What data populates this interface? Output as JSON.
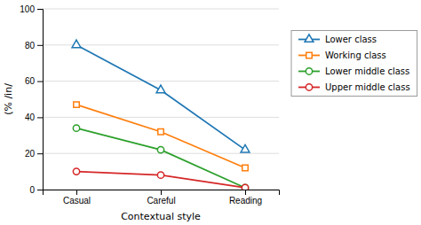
{
  "chart_data": {
    "type": "line",
    "categories": [
      "Casual",
      "Careful",
      "Reading"
    ],
    "series": [
      {
        "name": "Lower class",
        "values": [
          80,
          55,
          22
        ],
        "marker": "triangle"
      },
      {
        "name": "Working class",
        "values": [
          47,
          32,
          12
        ],
        "marker": "square"
      },
      {
        "name": "Lower middle class",
        "values": [
          34,
          22,
          1
        ],
        "marker": "circle"
      },
      {
        "name": "Upper middle class",
        "values": [
          10,
          8,
          1
        ],
        "marker": "circle"
      }
    ],
    "x_label": "Contextual style",
    "y_label": "(% /in/",
    "ylim": [
      0,
      100
    ],
    "yticks": [
      0,
      20,
      40,
      60,
      80,
      100
    ],
    "grid": true,
    "legend": "right"
  }
}
